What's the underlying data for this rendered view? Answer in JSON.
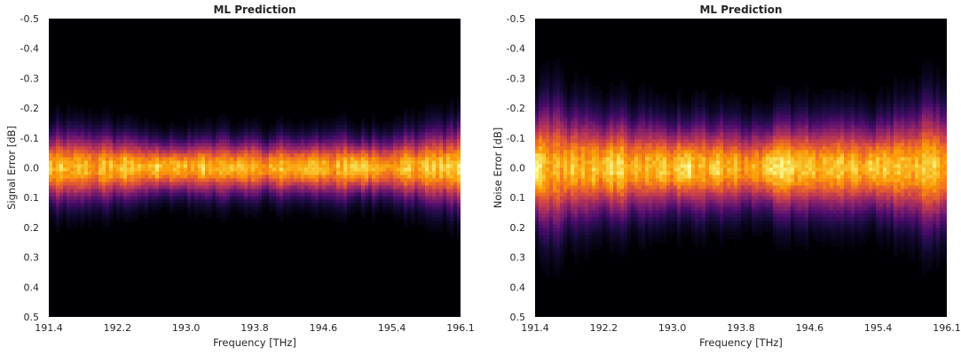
{
  "chart_data": [
    {
      "type": "heatmap",
      "title": "ML Prediction",
      "xlabel": "Frequency [THz]",
      "ylabel": "Signal Error [dB]",
      "x_ticks": [
        "191.4",
        "192.2",
        "193.0",
        "193.8",
        "194.6",
        "195.4",
        "196.1"
      ],
      "y_ticks": [
        "-0.5",
        "-0.4",
        "-0.3",
        "-0.2",
        "-0.1",
        "0.0",
        "0.1",
        "0.2",
        "0.3",
        "0.4",
        "0.5"
      ],
      "xlim": [
        191.4,
        196.1
      ],
      "ylim": [
        -0.5,
        0.5
      ],
      "y_axis_inverted": true,
      "colormap": "inferno",
      "distribution_center_db": 0.0,
      "distribution_spread_db": 0.055,
      "grid": false,
      "colorbar": false
    },
    {
      "type": "heatmap",
      "title": "ML Prediction",
      "xlabel": "Frequency [THz]",
      "ylabel": "Noise Error [dB]",
      "x_ticks": [
        "191.4",
        "192.2",
        "193.0",
        "193.8",
        "194.6",
        "195.4",
        "196.1"
      ],
      "y_ticks": [
        "-0.5",
        "-0.4",
        "-0.3",
        "-0.2",
        "-0.1",
        "0.0",
        "0.1",
        "0.2",
        "0.3",
        "0.4",
        "0.5"
      ],
      "xlim": [
        191.4,
        196.1
      ],
      "ylim": [
        -0.5,
        0.5
      ],
      "y_axis_inverted": true,
      "colormap": "inferno",
      "distribution_center_db": 0.0,
      "distribution_spread_db": 0.085,
      "grid": false,
      "colorbar": false
    }
  ],
  "colors": {
    "background": "#000004",
    "text": "#262626",
    "colormap_stops": [
      "#000004",
      "#1b0c41",
      "#4a0c6b",
      "#781c6d",
      "#a52c60",
      "#cf4446",
      "#ed6925",
      "#fb9b06",
      "#f7d13d",
      "#fcffa4"
    ]
  }
}
